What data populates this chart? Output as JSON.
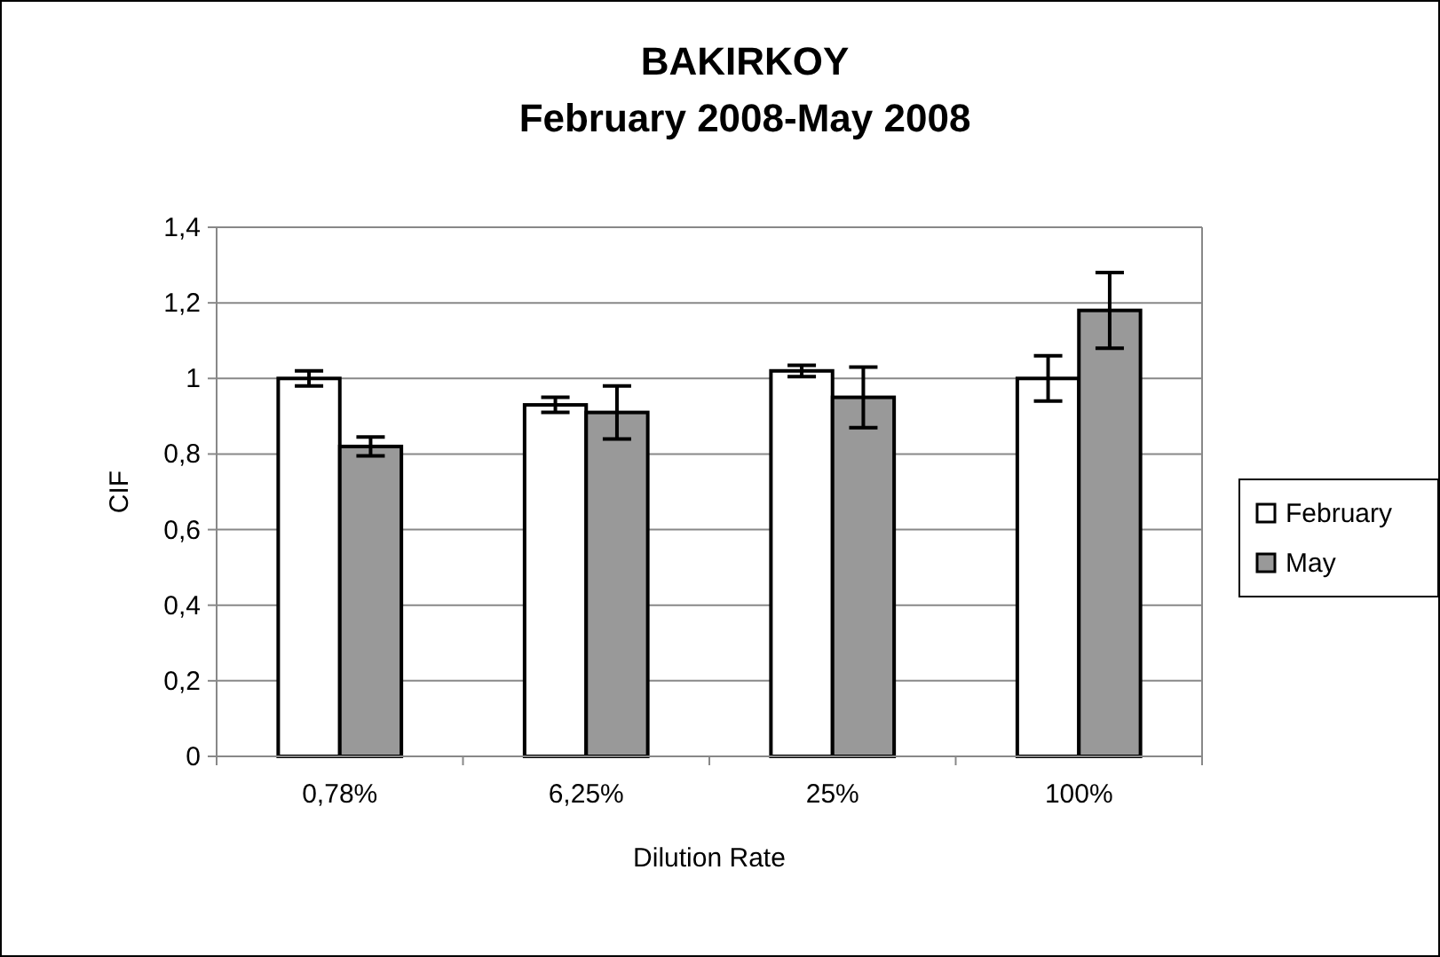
{
  "chart_data": {
    "type": "bar",
    "title": "BAKIRKOY\nFebruary 2008-May 2008",
    "xlabel": "Dilution Rate",
    "ylabel": "CIF",
    "categories": [
      "0,78%",
      "6,25%",
      "25%",
      "100%"
    ],
    "series": [
      {
        "name": "February",
        "color": "#ffffff",
        "values": [
          1.0,
          0.93,
          1.02,
          1.0
        ],
        "errors": [
          0.02,
          0.02,
          0.015,
          0.06
        ]
      },
      {
        "name": "May",
        "color": "#999999",
        "values": [
          0.82,
          0.91,
          0.95,
          1.18
        ],
        "errors": [
          0.025,
          0.07,
          0.08,
          0.1
        ]
      }
    ],
    "ylim": [
      0,
      1.4
    ],
    "yticks": [
      0,
      {
        "value": 0.2,
        "label": "0,2"
      },
      {
        "value": 0.4,
        "label": "0,4"
      },
      {
        "value": 0.6,
        "label": "0,6"
      },
      {
        "value": 0.8,
        "label": "0,8"
      },
      1,
      {
        "value": 1.2,
        "label": "1,2"
      },
      {
        "value": 1.4,
        "label": "1,4"
      }
    ],
    "grid": "y",
    "legend": "right"
  }
}
